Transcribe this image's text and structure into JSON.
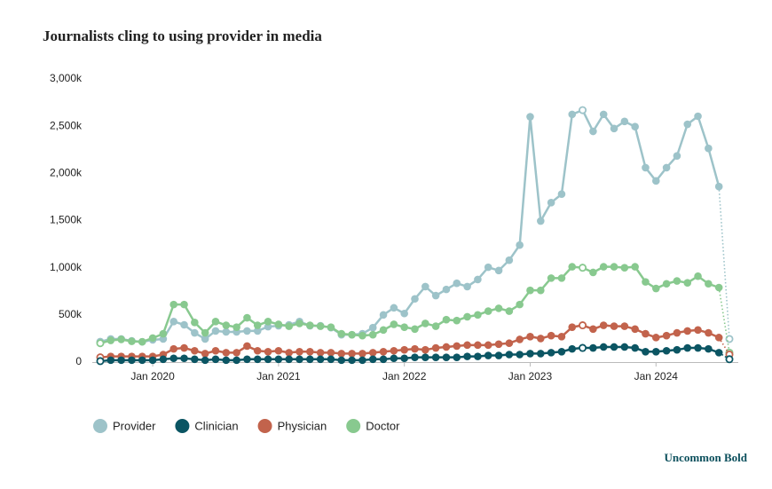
{
  "chart_data": {
    "type": "line",
    "title": "Journalists cling to using provider in media",
    "brand": "Uncommon Bold",
    "x": [
      "2019-08",
      "2019-09",
      "2019-10",
      "2019-11",
      "2019-12",
      "2020-01",
      "2020-02",
      "2020-03",
      "2020-04",
      "2020-05",
      "2020-06",
      "2020-07",
      "2020-08",
      "2020-09",
      "2020-10",
      "2020-11",
      "2020-12",
      "2021-01",
      "2021-02",
      "2021-03",
      "2021-04",
      "2021-05",
      "2021-06",
      "2021-07",
      "2021-08",
      "2021-09",
      "2021-10",
      "2021-11",
      "2021-12",
      "2022-01",
      "2022-02",
      "2022-03",
      "2022-04",
      "2022-05",
      "2022-06",
      "2022-07",
      "2022-08",
      "2022-09",
      "2022-10",
      "2022-11",
      "2022-12",
      "2023-01",
      "2023-02",
      "2023-03",
      "2023-04",
      "2023-05",
      "2023-06",
      "2023-07",
      "2023-08",
      "2023-09",
      "2023-10",
      "2023-11",
      "2023-12",
      "2024-01",
      "2024-02",
      "2024-03",
      "2024-04",
      "2024-05",
      "2024-06",
      "2024-07",
      "2024-08"
    ],
    "series": [
      {
        "name": "Provider",
        "color": "#9dc3c9",
        "values": [
          215,
          245,
          245,
          225,
          215,
          235,
          245,
          430,
          395,
          310,
          245,
          330,
          320,
          320,
          330,
          330,
          375,
          385,
          395,
          430,
          385,
          385,
          365,
          290,
          290,
          300,
          365,
          500,
          575,
          515,
          670,
          800,
          705,
          770,
          835,
          800,
          875,
          1005,
          970,
          1080,
          1240,
          2600,
          1495,
          1690,
          1780,
          2625,
          2670,
          2445,
          2625,
          2475,
          2550,
          2495,
          2060,
          1920,
          2060,
          2185,
          2520,
          2605,
          2265,
          1860,
          245
        ]
      },
      {
        "name": "Clinician",
        "color": "#0b5563",
        "values": [
          10,
          20,
          20,
          20,
          20,
          20,
          30,
          40,
          40,
          30,
          20,
          30,
          20,
          20,
          30,
          30,
          30,
          30,
          30,
          30,
          30,
          30,
          30,
          20,
          20,
          20,
          30,
          30,
          40,
          40,
          50,
          50,
          50,
          50,
          50,
          60,
          60,
          70,
          70,
          80,
          80,
          90,
          90,
          100,
          110,
          140,
          150,
          150,
          160,
          160,
          160,
          150,
          110,
          110,
          120,
          130,
          150,
          150,
          140,
          100,
          30
        ]
      },
      {
        "name": "Physician",
        "color": "#c2634c",
        "values": [
          50,
          60,
          60,
          60,
          60,
          60,
          80,
          140,
          150,
          120,
          90,
          120,
          100,
          100,
          170,
          120,
          110,
          120,
          100,
          110,
          110,
          100,
          100,
          90,
          90,
          90,
          100,
          110,
          120,
          130,
          140,
          130,
          150,
          160,
          170,
          180,
          180,
          180,
          190,
          200,
          240,
          270,
          250,
          280,
          270,
          370,
          390,
          350,
          390,
          380,
          380,
          350,
          300,
          260,
          280,
          310,
          330,
          340,
          310,
          260,
          80
        ]
      },
      {
        "name": "Doctor",
        "color": "#88c98f",
        "values": [
          200,
          230,
          240,
          220,
          215,
          255,
          300,
          610,
          610,
          420,
          310,
          430,
          390,
          370,
          470,
          390,
          430,
          400,
          380,
          410,
          390,
          380,
          370,
          300,
          290,
          280,
          290,
          340,
          400,
          370,
          350,
          410,
          380,
          450,
          440,
          480,
          500,
          540,
          570,
          540,
          610,
          760,
          760,
          890,
          890,
          1010,
          1000,
          950,
          1010,
          1010,
          1000,
          1010,
          850,
          780,
          830,
          860,
          840,
          910,
          830,
          790,
          100
        ]
      }
    ],
    "ylim": [
      0,
      3000
    ],
    "yticks": [
      0,
      {
        "value": 500,
        "label": "500k"
      },
      {
        "value": 1000,
        "label": "1,000k"
      },
      {
        "value": 1500,
        "label": "1,500k"
      },
      {
        "value": 2000,
        "label": "2,000k"
      },
      {
        "value": 2500,
        "label": "2,500k"
      },
      {
        "value": 3000,
        "label": "3,000k"
      }
    ],
    "xticks": [
      {
        "value": "2020-01",
        "label": "Jan 2020"
      },
      {
        "value": "2021-01",
        "label": "Jan 2021"
      },
      {
        "value": "2022-01",
        "label": "Jan 2022"
      },
      {
        "value": "2023-01",
        "label": "Jan 2023"
      },
      {
        "value": "2024-01",
        "label": "Jan 2024"
      }
    ],
    "open_marker_indices": [
      0,
      46,
      60
    ],
    "dotted_last_segment": true,
    "legend": "bottom-left"
  }
}
